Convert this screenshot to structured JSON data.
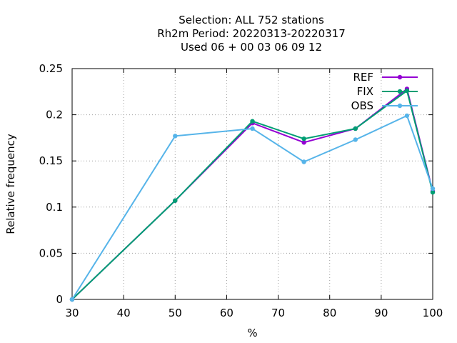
{
  "chart_data": {
    "type": "line",
    "title_lines": [
      "Selection: ALL    752 stations",
      "Rh2m  Period: 20220313-20220317",
      "Used  06 + 00 03 06 09 12"
    ],
    "xlabel": "%",
    "ylabel": "Relative frequency",
    "xlim": [
      30,
      100
    ],
    "ylim": [
      0,
      0.25
    ],
    "xticks": [
      30,
      40,
      50,
      60,
      70,
      80,
      90,
      100
    ],
    "yticks": [
      0,
      0.05,
      0.1,
      0.15,
      0.2,
      0.25
    ],
    "xtick_labels": [
      "30",
      "40",
      "50",
      "60",
      "70",
      "80",
      "90",
      "100"
    ],
    "ytick_labels": [
      "0",
      "0.05",
      "0.1",
      "0.15",
      "0.2",
      "0.25"
    ],
    "grid": true,
    "legend_position": "top-right",
    "x": [
      30,
      50,
      65,
      75,
      85,
      95,
      100
    ],
    "series": [
      {
        "name": "REF",
        "color": "#9400d3",
        "values": [
          0.0,
          0.107,
          0.191,
          0.17,
          0.185,
          0.228,
          0.117
        ]
      },
      {
        "name": "FIX",
        "color": "#009e73",
        "values": [
          0.0,
          0.107,
          0.193,
          0.174,
          0.185,
          0.226,
          0.116
        ]
      },
      {
        "name": "OBS",
        "color": "#56b4e9",
        "values": [
          0.0,
          0.177,
          0.185,
          0.149,
          0.173,
          0.199,
          0.12
        ]
      }
    ]
  }
}
